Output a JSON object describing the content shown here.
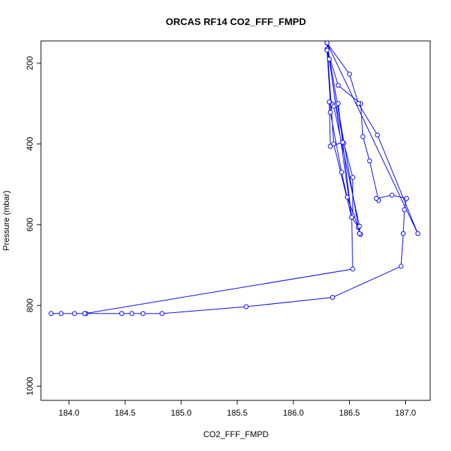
{
  "chart_data": {
    "type": "line",
    "title": "ORCAS RF14 CO2_FFF_FMPD",
    "xlabel": "CO2_FFF_FMPD",
    "ylabel": "Pressure (mbar)",
    "xlim": [
      183.75,
      187.22
    ],
    "ylim": [
      1035,
      145
    ],
    "y_reversed": true,
    "x_ticks": [
      184.0,
      184.5,
      185.0,
      185.5,
      186.0,
      186.5,
      187.0
    ],
    "x_tick_labels": [
      "184.0",
      "184.5",
      "185.0",
      "185.5",
      "186.0",
      "186.5",
      "187.0"
    ],
    "y_ticks": [
      200,
      400,
      600,
      800,
      1000
    ],
    "y_tick_labels": [
      "200",
      "400",
      "600",
      "800",
      "1000"
    ],
    "grid": false,
    "legend": "none",
    "series_color": "#0000ff",
    "series": [
      {
        "points": [
          [
            186.3,
            165
          ],
          [
            186.4,
            255
          ],
          [
            186.6,
            300
          ],
          [
            186.62,
            382
          ],
          [
            186.68,
            442
          ],
          [
            186.76,
            540
          ],
          [
            186.74,
            535
          ],
          [
            186.88,
            527
          ],
          [
            187.01,
            535
          ],
          [
            186.99,
            563
          ],
          [
            186.98,
            622
          ],
          [
            186.96,
            703
          ],
          [
            186.35,
            780
          ],
          [
            185.58,
            803
          ],
          [
            184.83,
            820
          ],
          [
            184.66,
            820
          ],
          [
            184.56,
            820
          ],
          [
            184.47,
            820
          ],
          [
            184.15,
            820
          ],
          [
            184.14,
            820
          ],
          [
            184.05,
            820
          ],
          [
            183.93,
            820
          ],
          [
            183.84,
            820
          ],
          [
            184.14,
            820
          ],
          [
            186.53,
            710
          ],
          [
            186.52,
            582
          ],
          [
            186.53,
            578
          ],
          [
            186.53,
            483
          ],
          [
            186.45,
            398
          ],
          [
            186.38,
            303
          ],
          [
            186.32,
            190
          ],
          [
            186.3,
            168
          ],
          [
            186.33,
            298
          ],
          [
            186.33,
            322
          ],
          [
            186.43,
            470
          ],
          [
            186.48,
            532
          ],
          [
            186.58,
            607
          ],
          [
            186.59,
            622
          ],
          [
            186.6,
            624
          ],
          [
            186.58,
            606
          ],
          [
            186.52,
            582
          ],
          [
            186.4,
            300
          ],
          [
            186.44,
            396
          ],
          [
            186.33,
            406
          ],
          [
            186.32,
            296
          ],
          [
            186.35,
            303
          ],
          [
            186.36,
            307
          ],
          [
            186.59,
            604
          ],
          [
            186.59,
            622
          ],
          [
            186.3,
            150
          ],
          [
            186.36,
            400
          ],
          [
            186.52,
            582
          ],
          [
            186.3,
            150
          ],
          [
            186.5,
            227
          ],
          [
            186.58,
            300
          ],
          [
            186.75,
            378
          ],
          [
            187.11,
            622
          ],
          [
            186.3,
            150
          ]
        ]
      }
    ]
  }
}
